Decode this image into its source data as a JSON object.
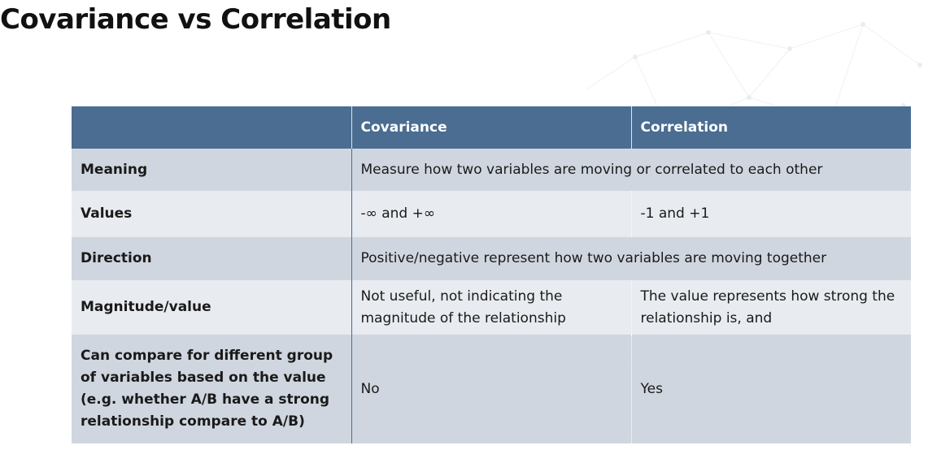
{
  "title": "Covariance vs Correlation",
  "table": {
    "headers": [
      "",
      "Covariance",
      "Correlation"
    ],
    "rows": [
      {
        "label": "Meaning",
        "merged": "Measure how two variables are moving or correlated to each other"
      },
      {
        "label": "Values",
        "covariance": "-∞ and +∞",
        "correlation": "-1 and +1"
      },
      {
        "label": "Direction",
        "merged": "Positive/negative represent how two variables are moving together"
      },
      {
        "label": "Magnitude/value",
        "covariance": "Not useful, not indicating the magnitude of the relationship",
        "correlation": "The value represents how strong the relationship is, and"
      },
      {
        "label": "Can compare for different group of variables based on the value (e.g. whether A/B have a strong relationship compare to A/B)",
        "covariance": "No",
        "correlation": "Yes"
      }
    ]
  },
  "colors": {
    "header_bg": "#4a6d91",
    "row_dark": "#d0d6df",
    "row_light": "#e8ebef",
    "header_text": "#ffffff",
    "title_text": "#111111"
  }
}
